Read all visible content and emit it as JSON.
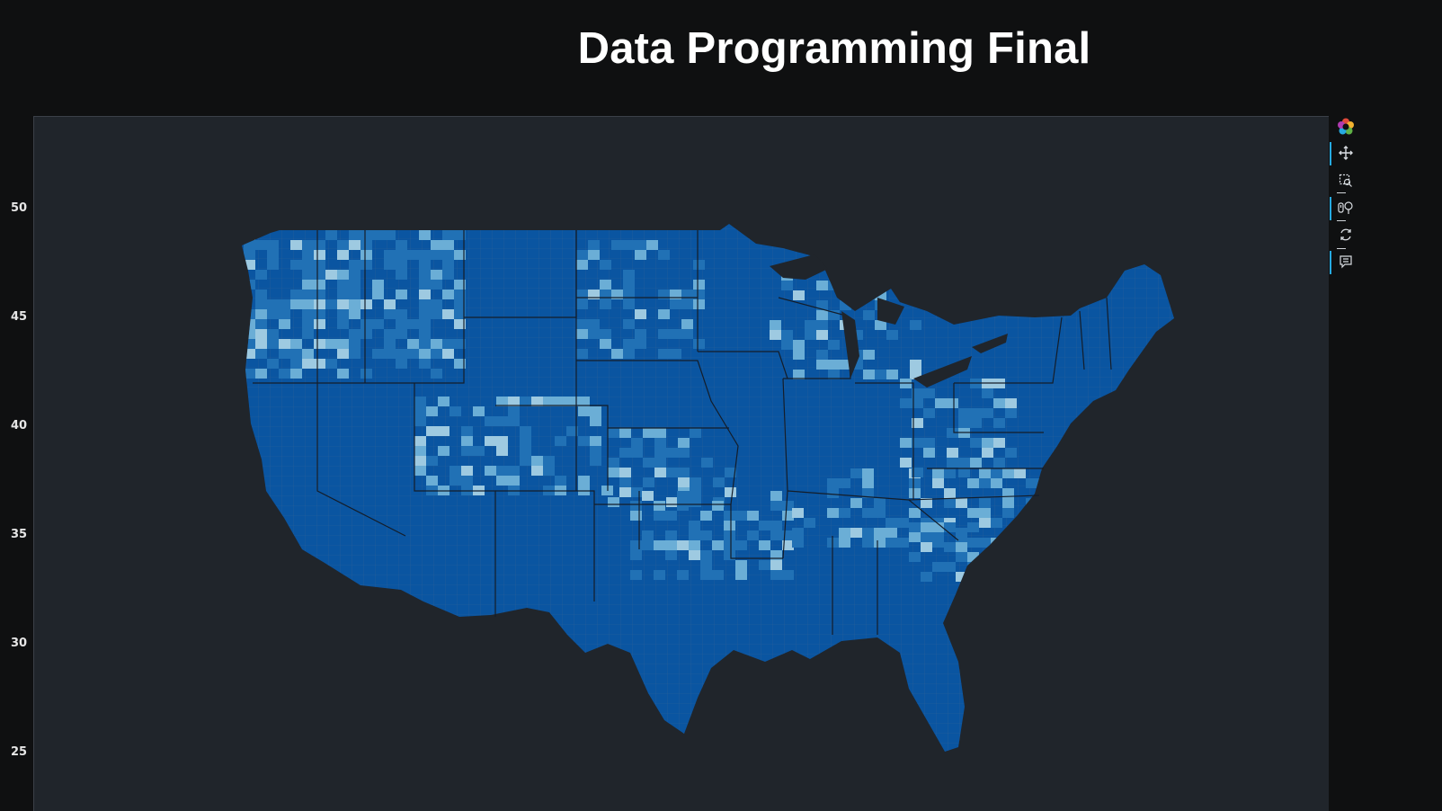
{
  "header": {
    "title": "Data Programming Final"
  },
  "axis": {
    "y_ticks": [
      "50",
      "45",
      "40",
      "35",
      "30",
      "25"
    ]
  },
  "map": {
    "region": "Contiguous United States counties",
    "palette": {
      "background": "#20252b",
      "dark": "#08519c",
      "mid": "#2171b5",
      "light": "#6baed6",
      "lighter": "#9ecae1",
      "lightest": "#deebf7",
      "border": "#1b2a3d"
    }
  },
  "toolbar": {
    "tools": [
      {
        "name": "bokeh-logo-icon",
        "active": false
      },
      {
        "name": "pan-icon",
        "active": true
      },
      {
        "name": "box-zoom-icon",
        "active": false
      },
      {
        "name": "wheel-zoom-icon",
        "active": true
      },
      {
        "name": "reset-icon",
        "active": false
      },
      {
        "name": "hover-icon",
        "active": true
      }
    ]
  }
}
